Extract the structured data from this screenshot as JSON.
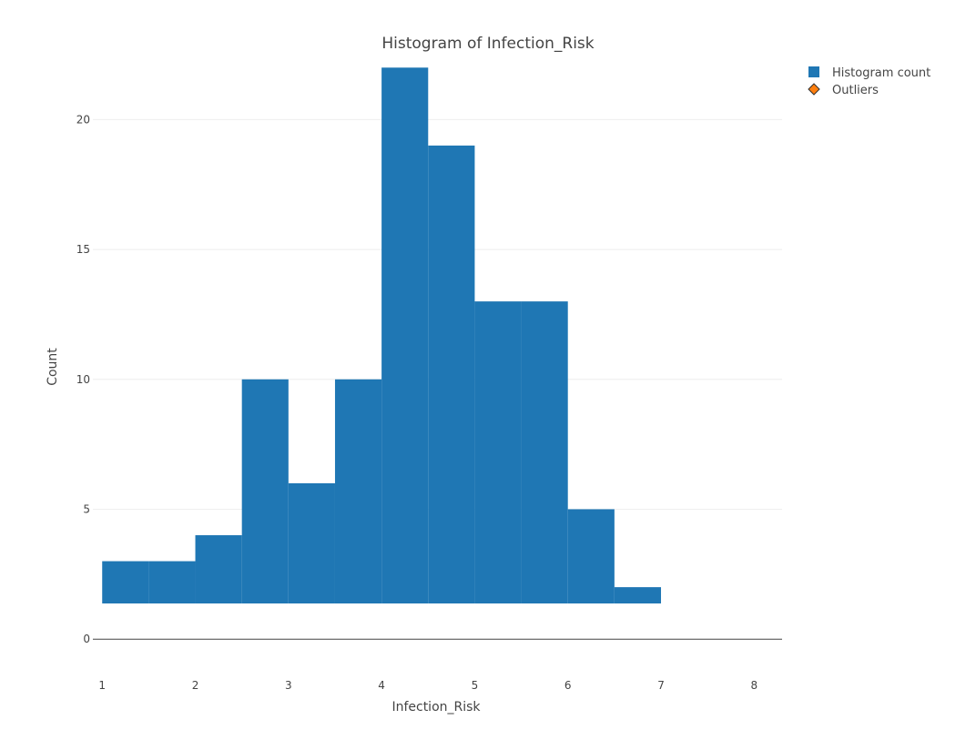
{
  "chart_data": {
    "type": "bar",
    "title": "Histogram of Infection_Risk",
    "xlabel": "Infection_Risk",
    "ylabel": "Count",
    "xlim": [
      0.9,
      8.3
    ],
    "ylim": [
      -1.5,
      22.5
    ],
    "x_ticks": [
      1,
      2,
      3,
      4,
      5,
      6,
      7,
      8
    ],
    "y_ticks": [
      0,
      5,
      10,
      15,
      20
    ],
    "grid": true,
    "legend_position": "top-right",
    "series": [
      {
        "name": "Histogram count",
        "color": "#1f77b4",
        "bin_width": 0.5,
        "bin_starts": [
          1,
          1.5,
          2,
          2.5,
          3,
          3.5,
          4,
          4.5,
          5,
          5.5,
          6,
          6.5
        ],
        "values": [
          3,
          3,
          4,
          10,
          6,
          10,
          22,
          19,
          13,
          13,
          5,
          2
        ]
      },
      {
        "name": "Outliers",
        "color": "#ff7f0e",
        "values": []
      }
    ]
  }
}
